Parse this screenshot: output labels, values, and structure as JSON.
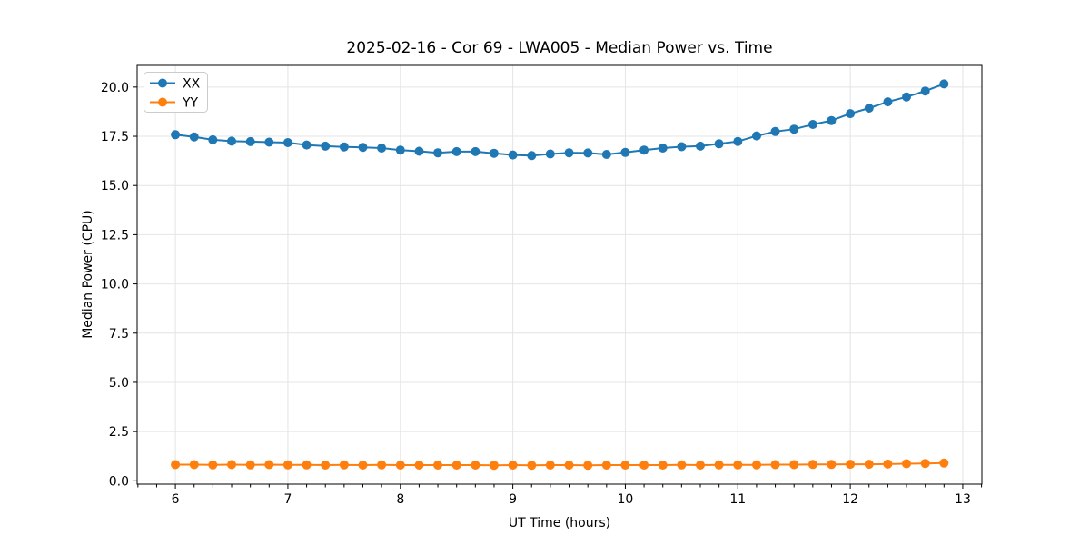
{
  "figure": {
    "title": "2025-02-16 - Cor 69 - LWA005 - Median Power vs. Time",
    "xlabel": "UT Time (hours)",
    "ylabel": "Median Power (CPU)"
  },
  "legend": {
    "position": "upper left",
    "entries": [
      {
        "label": "XX",
        "color": "#1f77b4"
      },
      {
        "label": "YY",
        "color": "#ff7f0e"
      }
    ]
  },
  "colors": {
    "series_xx": "#1f77b4",
    "series_yy": "#ff7f0e",
    "grid": "#e4e4e4",
    "spine": "#000000",
    "legend_border": "#cccccc",
    "background": "#ffffff"
  },
  "chart_data": {
    "type": "line",
    "title": "2025-02-16 - Cor 69 - LWA005 - Median Power vs. Time",
    "xlabel": "UT Time (hours)",
    "ylabel": "Median Power (CPU)",
    "grid": true,
    "legend_position": "upper left",
    "xlim": [
      5.66,
      13.17
    ],
    "ylim": [
      -0.17,
      21.1
    ],
    "x_major_ticks": [
      6,
      7,
      8,
      9,
      10,
      11,
      12,
      13
    ],
    "x_tick_labels": [
      "6",
      "7",
      "8",
      "9",
      "10",
      "11",
      "12",
      "13"
    ],
    "x_minor_tick_step": 0.1666667,
    "y_major_ticks": [
      0,
      2.5,
      5,
      7.5,
      10,
      12.5,
      15,
      17.5,
      20
    ],
    "y_tick_labels": [
      "0.0",
      "2.5",
      "5.0",
      "7.5",
      "10.0",
      "12.5",
      "15.0",
      "17.5",
      "20.0"
    ],
    "x": [
      6.0,
      6.167,
      6.333,
      6.5,
      6.667,
      6.833,
      7.0,
      7.167,
      7.333,
      7.5,
      7.667,
      7.833,
      8.0,
      8.167,
      8.333,
      8.5,
      8.667,
      8.833,
      9.0,
      9.167,
      9.333,
      9.5,
      9.667,
      9.833,
      10.0,
      10.167,
      10.333,
      10.5,
      10.667,
      10.833,
      11.0,
      11.167,
      11.333,
      11.5,
      11.667,
      11.833,
      12.0,
      12.167,
      12.333,
      12.5,
      12.667,
      12.833
    ],
    "series": [
      {
        "name": "XX",
        "color": "#1f77b4",
        "values": [
          17.58,
          17.47,
          17.32,
          17.25,
          17.23,
          17.2,
          17.18,
          17.06,
          17.0,
          16.96,
          16.94,
          16.9,
          16.8,
          16.74,
          16.66,
          16.72,
          16.72,
          16.64,
          16.55,
          16.52,
          16.6,
          16.66,
          16.65,
          16.58,
          16.68,
          16.8,
          16.9,
          16.97,
          17.0,
          17.12,
          17.24,
          17.52,
          17.74,
          17.86,
          18.1,
          18.3,
          18.65,
          18.93,
          19.25,
          19.5,
          19.8,
          20.16
        ]
      },
      {
        "name": "YY",
        "color": "#ff7f0e",
        "values": [
          0.82,
          0.82,
          0.81,
          0.82,
          0.81,
          0.82,
          0.81,
          0.81,
          0.8,
          0.81,
          0.8,
          0.81,
          0.8,
          0.8,
          0.8,
          0.8,
          0.8,
          0.79,
          0.8,
          0.79,
          0.8,
          0.8,
          0.79,
          0.8,
          0.8,
          0.8,
          0.8,
          0.81,
          0.8,
          0.81,
          0.81,
          0.81,
          0.82,
          0.82,
          0.83,
          0.83,
          0.84,
          0.84,
          0.85,
          0.87,
          0.88,
          0.9
        ]
      }
    ]
  }
}
